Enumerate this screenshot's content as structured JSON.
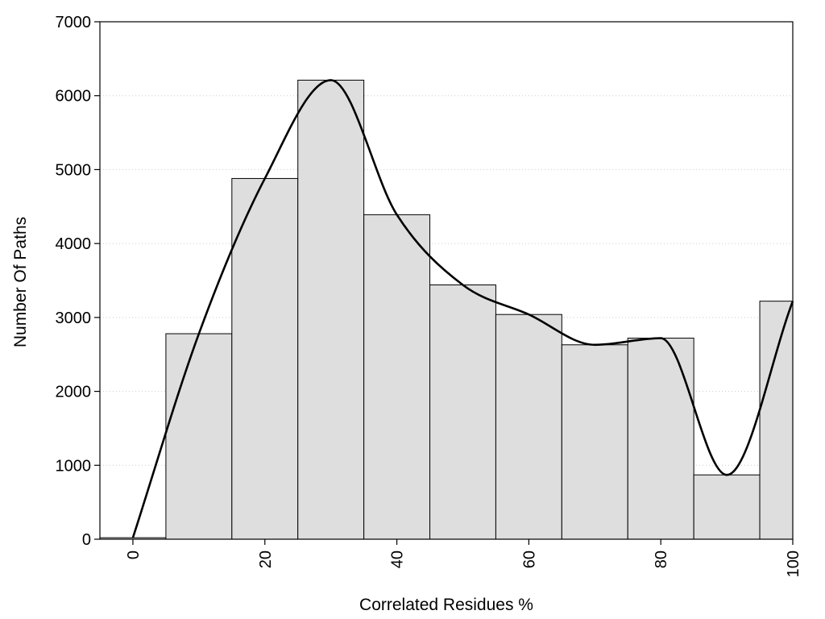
{
  "chart_data": {
    "type": "bar",
    "title": "",
    "xlabel": "Correlated Residues %",
    "ylabel": "Number Of Paths",
    "categories": [
      0,
      10,
      20,
      30,
      40,
      50,
      60,
      70,
      80,
      90,
      100
    ],
    "values": [
      20,
      2780,
      4880,
      6210,
      4390,
      3440,
      3040,
      2630,
      2720,
      870,
      3220
    ],
    "smooth_curve": {
      "x": [
        0,
        10,
        20,
        30,
        40,
        50,
        60,
        70,
        80,
        90,
        100
      ],
      "y": [
        20,
        2780,
        4880,
        6210,
        4390,
        3440,
        3040,
        2630,
        2720,
        870,
        3220
      ]
    },
    "xlim": [
      -5,
      100
    ],
    "ylim": [
      0,
      7000
    ],
    "xticks": [
      0,
      20,
      40,
      60,
      80,
      100
    ],
    "yticks": [
      0,
      1000,
      2000,
      3000,
      4000,
      5000,
      6000,
      7000
    ],
    "grid": "horizontal dotted",
    "legend": "none",
    "bar_color": "#dedede",
    "bar_edge_color": "#000000",
    "line_color": "#000000",
    "grid_color": "#cccccc"
  }
}
